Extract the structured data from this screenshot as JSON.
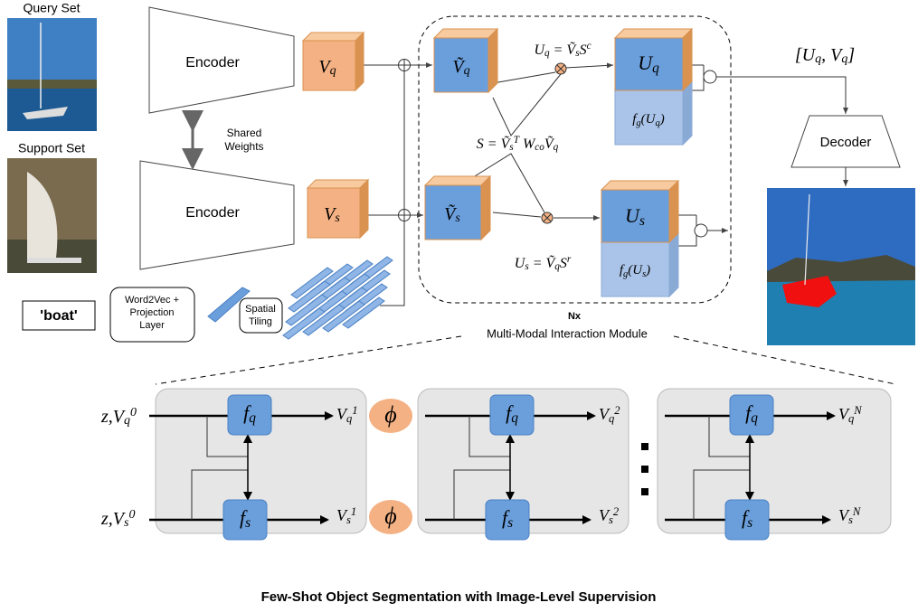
{
  "inputs": {
    "query_label": "Query Set",
    "support_label": "Support Set"
  },
  "encoders": [
    "Encoder",
    "Encoder"
  ],
  "shared_weights": [
    "Shared",
    "Weights"
  ],
  "features": {
    "vq": [
      {
        "t": "V"
      },
      {
        "t": "q",
        "sub": true
      }
    ],
    "vs": [
      {
        "t": "V"
      },
      {
        "t": "s",
        "sub": true
      }
    ]
  },
  "text_branch": {
    "word": "'boat'",
    "word2vec": [
      "Word2Vec +",
      "Projection",
      "Layer"
    ],
    "tiling": [
      "Spatial",
      "Tiling"
    ]
  },
  "module": {
    "vq_tilde": [
      {
        "t": "Ṽ"
      },
      {
        "t": "q",
        "sub": true
      }
    ],
    "vs_tilde": [
      {
        "t": "Ṽ"
      },
      {
        "t": "s",
        "sub": true
      }
    ],
    "uq_eq": [
      {
        "t": "U"
      },
      {
        "t": "q",
        "sub": true
      },
      {
        "t": " = Ṽ"
      },
      {
        "t": "s",
        "sub": true
      },
      {
        "t": "S"
      },
      {
        "t": "c",
        "sup": true
      }
    ],
    "us_eq": [
      {
        "t": "U"
      },
      {
        "t": "s",
        "sub": true
      },
      {
        "t": " = Ṽ"
      },
      {
        "t": "q",
        "sub": true
      },
      {
        "t": "S"
      },
      {
        "t": "r",
        "sup": true
      }
    ],
    "s_eq": [
      {
        "t": "S = Ṽ"
      },
      {
        "t": "s",
        "sub": true
      },
      {
        "t": "T",
        "sup": true
      },
      {
        "t": " W"
      },
      {
        "t": "co",
        "sub": true
      },
      {
        "t": "Ṽ"
      },
      {
        "t": "q",
        "sub": true
      }
    ],
    "uq": [
      {
        "t": "U"
      },
      {
        "t": "q",
        "sub": true
      }
    ],
    "us": [
      {
        "t": "U"
      },
      {
        "t": "s",
        "sub": true
      }
    ],
    "fg_uq": [
      {
        "t": "f"
      },
      {
        "t": "g",
        "sub": true
      },
      {
        "t": "(U"
      },
      {
        "t": "q",
        "sub": true
      },
      {
        "t": ")"
      }
    ],
    "fg_us": [
      {
        "t": "f"
      },
      {
        "t": "g",
        "sub": true
      },
      {
        "t": "(U"
      },
      {
        "t": "s",
        "sub": true
      },
      {
        "t": ")"
      }
    ],
    "repeat": "Nx",
    "title": "Multi-Modal Interaction Module"
  },
  "output": {
    "concat": [
      {
        "t": "[U"
      },
      {
        "t": "q",
        "sub": true
      },
      {
        "t": ", V"
      },
      {
        "t": "q",
        "sub": true
      },
      {
        "t": "]"
      }
    ],
    "decoder": "Decoder"
  },
  "detail": {
    "z_q": [
      {
        "t": "z,V"
      },
      {
        "t": "q",
        "sub": true
      },
      {
        "t": "0",
        "sup": true
      }
    ],
    "z_s": [
      {
        "t": "z,V"
      },
      {
        "t": "s",
        "sub": true
      },
      {
        "t": "0",
        "sup": true
      }
    ],
    "blocks": [
      {
        "fq": [
          {
            "t": "f"
          },
          {
            "t": "q",
            "sub": true
          }
        ],
        "fs": [
          {
            "t": "f"
          },
          {
            "t": "s",
            "sub": true
          }
        ],
        "out_q": [
          {
            "t": "V"
          },
          {
            "t": "q",
            "sub": true
          },
          {
            "t": "1",
            "sup": true
          }
        ],
        "out_s": [
          {
            "t": "V"
          },
          {
            "t": "s",
            "sub": true
          },
          {
            "t": "1",
            "sup": true
          }
        ]
      },
      {
        "fq": [
          {
            "t": "f"
          },
          {
            "t": "q",
            "sub": true
          }
        ],
        "fs": [
          {
            "t": "f"
          },
          {
            "t": "s",
            "sub": true
          }
        ],
        "out_q": [
          {
            "t": "V"
          },
          {
            "t": "q",
            "sub": true
          },
          {
            "t": "2",
            "sup": true
          }
        ],
        "out_s": [
          {
            "t": "V"
          },
          {
            "t": "s",
            "sub": true
          },
          {
            "t": "2",
            "sup": true
          }
        ]
      },
      {
        "fq": [
          {
            "t": "f"
          },
          {
            "t": "q",
            "sub": true
          }
        ],
        "fs": [
          {
            "t": "f"
          },
          {
            "t": "s",
            "sub": true
          }
        ],
        "out_q": [
          {
            "t": "V"
          },
          {
            "t": "q",
            "sub": true
          },
          {
            "t": "N",
            "sup": true
          }
        ],
        "out_s": [
          {
            "t": "V"
          },
          {
            "t": "s",
            "sub": true
          },
          {
            "t": "N",
            "sup": true
          }
        ]
      }
    ],
    "phi": [
      "ϕ",
      "ϕ"
    ]
  },
  "caption": "Few-Shot Object Segmentation with Image-Level Supervision"
}
